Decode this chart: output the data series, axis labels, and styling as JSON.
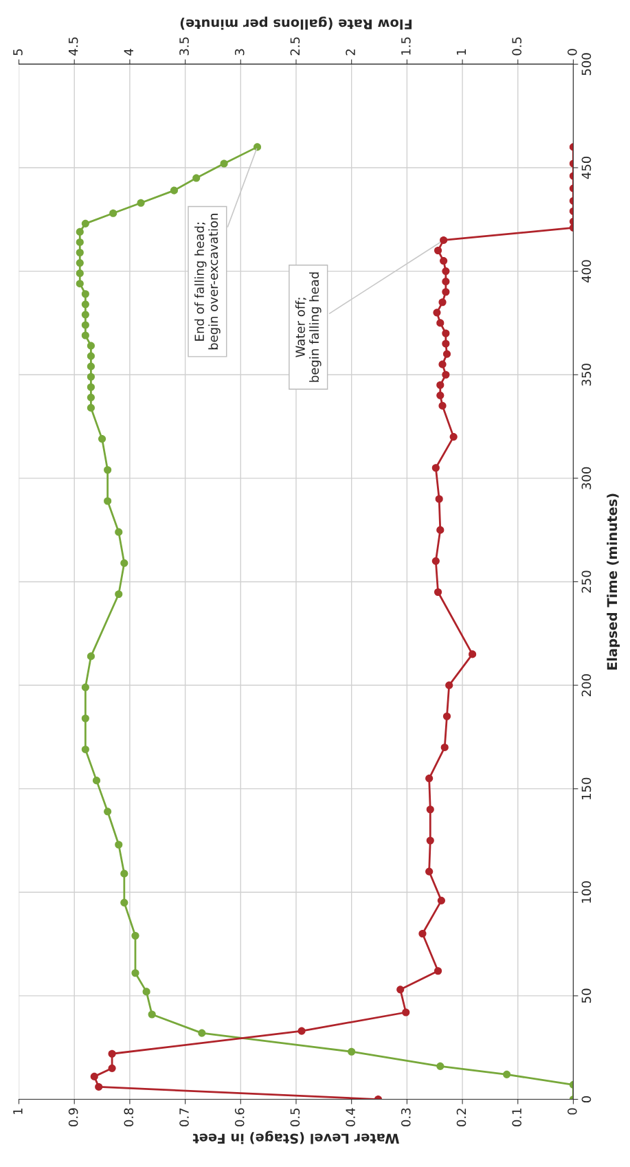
{
  "chart_data": {
    "type": "line",
    "xlabel": "Water Level (Stage) in Feet",
    "x2label": "Flow Rate (gallons per minute)",
    "ylabel": "Elapsed Time (minutes)",
    "xlim": [
      1,
      0
    ],
    "xticks": [
      1,
      0.9,
      0.8,
      0.7,
      0.6,
      0.5,
      0.4,
      0.3,
      0.2,
      0.1,
      0
    ],
    "x2lim": [
      5,
      0
    ],
    "x2ticks": [
      5,
      4.5,
      4,
      3.5,
      3,
      2.5,
      2,
      1.5,
      1,
      0.5,
      0
    ],
    "ylim": [
      0,
      500
    ],
    "yticks": [
      0,
      50,
      100,
      150,
      200,
      250,
      300,
      350,
      400,
      450,
      500
    ],
    "grid": true,
    "marker": "circle",
    "line_style": "solid",
    "series": [
      {
        "color": "#77a83a",
        "values": [
          0,
          7,
          12,
          16,
          23,
          32,
          41,
          52,
          61,
          79,
          95,
          109,
          123,
          139,
          154,
          169,
          184,
          199,
          214,
          244,
          259,
          274,
          289,
          304,
          319,
          334,
          339,
          344,
          349,
          354,
          359,
          364,
          369,
          374,
          379,
          384,
          389,
          394,
          399,
          404,
          409,
          414,
          419,
          423,
          428,
          433,
          439,
          445,
          452,
          460
        ],
        "x": [
          0,
          0,
          0.12,
          0.24,
          0.4,
          0.67,
          0.76,
          0.77,
          0.79,
          0.79,
          0.81,
          0.81,
          0.82,
          0.84,
          0.86,
          0.88,
          0.88,
          0.88,
          0.87,
          0.82,
          0.81,
          0.82,
          0.84,
          0.84,
          0.85,
          0.87,
          0.87,
          0.87,
          0.87,
          0.87,
          0.87,
          0.87,
          0.88,
          0.88,
          0.88,
          0.88,
          0.88,
          0.89,
          0.89,
          0.89,
          0.89,
          0.89,
          0.89,
          0.88,
          0.83,
          0.78,
          0.72,
          0.68,
          0.63,
          0.57
        ]
      },
      {
        "color": "#b0232a",
        "axis": "x2",
        "values": [
          0,
          6,
          11,
          15,
          22,
          33,
          42,
          53,
          62,
          80,
          96,
          110,
          125,
          140,
          155,
          170,
          185,
          200,
          215,
          245,
          260,
          275,
          290,
          305,
          320,
          335,
          340,
          345,
          350,
          355,
          360,
          365,
          370,
          375,
          380,
          385,
          390,
          395,
          400,
          405,
          410,
          415,
          421,
          424,
          429,
          434,
          440,
          446,
          452,
          460
        ],
        "x": [
          1.76,
          4.28,
          4.32,
          4.16,
          4.16,
          2.45,
          1.51,
          1.56,
          1.22,
          1.36,
          1.19,
          1.3,
          1.29,
          1.29,
          1.3,
          1.16,
          1.14,
          1.12,
          0.91,
          1.22,
          1.24,
          1.2,
          1.21,
          1.24,
          1.08,
          1.18,
          1.2,
          1.2,
          1.15,
          1.18,
          1.14,
          1.15,
          1.15,
          1.2,
          1.23,
          1.18,
          1.15,
          1.15,
          1.15,
          1.17,
          1.22,
          1.17,
          0,
          0,
          0,
          0,
          0,
          0,
          0,
          0
        ]
      }
    ],
    "annotations": [
      {
        "text": "End of falling head;\nbegin over-excavation",
        "x": 0.57,
        "y": 460
      },
      {
        "text": "Water off;\nbegin falling head",
        "x": 0.234,
        "y": 415
      }
    ]
  }
}
